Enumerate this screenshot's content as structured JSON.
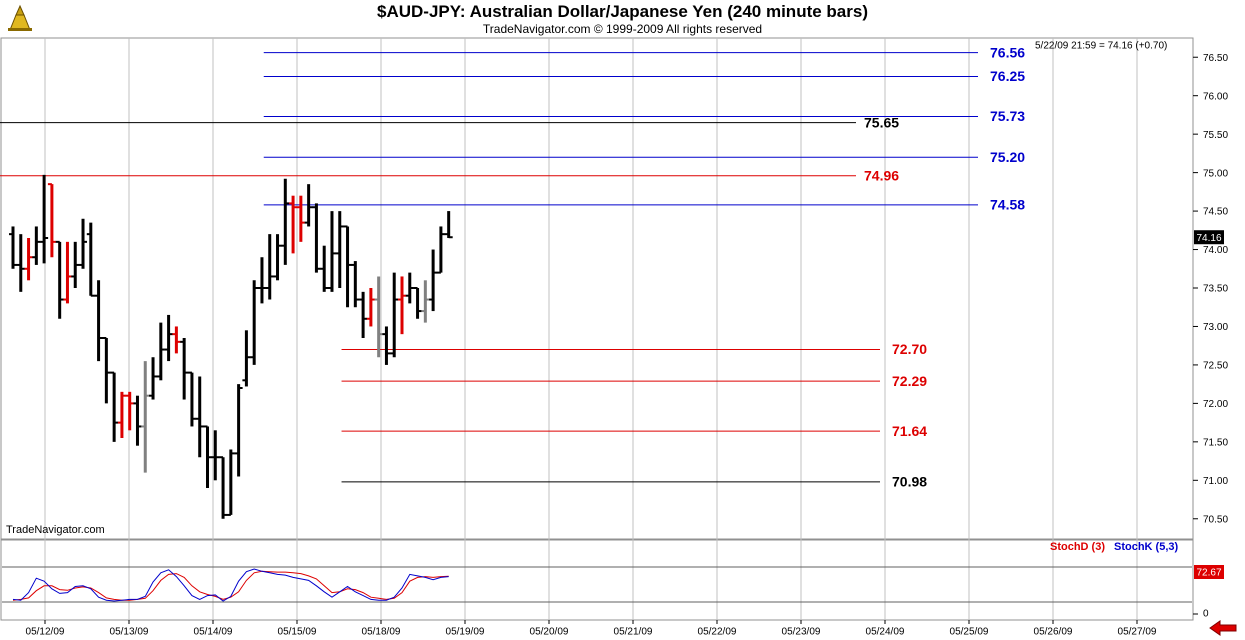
{
  "header": {
    "title": "$AUD-JPY:  Australian Dollar/Japanese Yen  (240 minute bars)",
    "subtitle": "TradeNavigator.com © 1999-2009 All rights reserved"
  },
  "footer": {
    "watermark": "TradeNavigator.com"
  },
  "colors": {
    "blue": "#0000cc",
    "red": "#dd0000",
    "black": "#000000",
    "gray": "#808080",
    "grid": "#c0c0c0",
    "last_box": "#000000"
  },
  "icons": {
    "logo": "chart-logo-icon",
    "prev": "red-left-arrow-icon"
  },
  "chart_data": [
    {
      "type": "ohlc",
      "quote_info": "5/22/09 21:59 = 74.16 (+0.70)",
      "last_price_label": "74.16",
      "last_price": 74.16,
      "ylim": [
        70.25,
        76.75
      ],
      "y_ticks": [
        70.5,
        71.0,
        71.5,
        72.0,
        72.5,
        73.0,
        73.5,
        74.0,
        74.5,
        75.0,
        75.5,
        76.0,
        76.5
      ],
      "y_tick_labels": [
        "70.50",
        "71.00",
        "71.50",
        "72.00",
        "72.50",
        "73.00",
        "73.50",
        "74.00",
        "74.50",
        "75.00",
        "75.50",
        "76.00",
        "76.50"
      ],
      "x_ticks": [
        "05/12/09",
        "05/13/09",
        "05/14/09",
        "05/15/09",
        "05/18/09",
        "05/19/09",
        "05/20/09",
        "05/21/09",
        "05/22/09",
        "05/23/09",
        "05/24/09",
        "05/25/09",
        "05/26/09",
        "05/27/09"
      ],
      "levels": [
        {
          "value": 76.56,
          "label": "76.56",
          "color": "blue",
          "start_bar": 33
        },
        {
          "value": 76.25,
          "label": "76.25",
          "color": "blue",
          "start_bar": 33
        },
        {
          "value": 75.73,
          "label": "75.73",
          "color": "blue",
          "start_bar": 33
        },
        {
          "value": 75.65,
          "label": "75.65",
          "color": "black",
          "start_bar": 0
        },
        {
          "value": 75.2,
          "label": "75.20",
          "color": "blue",
          "start_bar": 33
        },
        {
          "value": 74.96,
          "label": "74.96",
          "color": "red",
          "start_bar": 0
        },
        {
          "value": 74.58,
          "label": "74.58",
          "color": "blue",
          "start_bar": 33
        },
        {
          "value": 72.7,
          "label": "72.70",
          "color": "red",
          "start_bar": 43
        },
        {
          "value": 72.29,
          "label": "72.29",
          "color": "red",
          "start_bar": 43
        },
        {
          "value": 71.64,
          "label": "71.64",
          "color": "red",
          "start_bar": 43
        },
        {
          "value": 70.98,
          "label": "70.98",
          "color": "black",
          "start_bar": 43
        }
      ],
      "bars": [
        {
          "o": 74.2,
          "h": 74.3,
          "l": 73.75,
          "c": 73.8,
          "color": "black"
        },
        {
          "o": 73.8,
          "h": 74.2,
          "l": 73.45,
          "c": 73.75,
          "color": "black"
        },
        {
          "o": 73.75,
          "h": 74.15,
          "l": 73.6,
          "c": 73.9,
          "color": "red"
        },
        {
          "o": 73.9,
          "h": 74.3,
          "l": 73.8,
          "c": 74.1,
          "color": "black"
        },
        {
          "o": 74.1,
          "h": 74.97,
          "l": 73.82,
          "c": 74.15,
          "color": "black"
        },
        {
          "o": 74.85,
          "h": 74.85,
          "l": 73.9,
          "c": 74.1,
          "color": "red"
        },
        {
          "o": 74.1,
          "h": 74.1,
          "l": 73.1,
          "c": 73.35,
          "color": "black"
        },
        {
          "o": 73.35,
          "h": 74.1,
          "l": 73.3,
          "c": 73.65,
          "color": "red"
        },
        {
          "o": 73.65,
          "h": 74.1,
          "l": 73.5,
          "c": 73.8,
          "color": "black"
        },
        {
          "o": 73.8,
          "h": 74.4,
          "l": 73.75,
          "c": 74.1,
          "color": "black"
        },
        {
          "o": 74.2,
          "h": 74.35,
          "l": 73.4,
          "c": 73.4,
          "color": "black"
        },
        {
          "o": 73.4,
          "h": 73.6,
          "l": 72.55,
          "c": 72.85,
          "color": "black"
        },
        {
          "o": 72.85,
          "h": 72.85,
          "l": 72.0,
          "c": 72.4,
          "color": "black"
        },
        {
          "o": 72.4,
          "h": 72.4,
          "l": 71.5,
          "c": 71.75,
          "color": "black"
        },
        {
          "o": 71.75,
          "h": 72.15,
          "l": 71.55,
          "c": 72.1,
          "color": "red"
        },
        {
          "o": 72.1,
          "h": 72.15,
          "l": 71.65,
          "c": 72.0,
          "color": "red"
        },
        {
          "o": 72.0,
          "h": 72.1,
          "l": 71.45,
          "c": 71.7,
          "color": "black"
        },
        {
          "o": 71.7,
          "h": 72.55,
          "l": 71.1,
          "c": 72.1,
          "color": "gray"
        },
        {
          "o": 72.1,
          "h": 72.6,
          "l": 72.05,
          "c": 72.35,
          "color": "black"
        },
        {
          "o": 72.35,
          "h": 73.05,
          "l": 72.3,
          "c": 72.7,
          "color": "black"
        },
        {
          "o": 72.7,
          "h": 73.15,
          "l": 72.55,
          "c": 72.9,
          "color": "black"
        },
        {
          "o": 72.9,
          "h": 73.0,
          "l": 72.65,
          "c": 72.8,
          "color": "red"
        },
        {
          "o": 72.8,
          "h": 72.85,
          "l": 72.05,
          "c": 72.4,
          "color": "black"
        },
        {
          "o": 72.4,
          "h": 72.4,
          "l": 71.7,
          "c": 71.8,
          "color": "black"
        },
        {
          "o": 71.8,
          "h": 72.35,
          "l": 71.3,
          "c": 71.7,
          "color": "black"
        },
        {
          "o": 71.7,
          "h": 71.7,
          "l": 70.9,
          "c": 71.3,
          "color": "black"
        },
        {
          "o": 71.3,
          "h": 71.65,
          "l": 71.0,
          "c": 71.3,
          "color": "black"
        },
        {
          "o": 71.3,
          "h": 71.3,
          "l": 70.5,
          "c": 70.55,
          "color": "black"
        },
        {
          "o": 70.55,
          "h": 71.4,
          "l": 70.55,
          "c": 71.35,
          "color": "black"
        },
        {
          "o": 71.35,
          "h": 72.25,
          "l": 71.05,
          "c": 72.2,
          "color": "black"
        },
        {
          "o": 72.3,
          "h": 72.95,
          "l": 72.22,
          "c": 72.6,
          "color": "black"
        },
        {
          "o": 72.6,
          "h": 73.6,
          "l": 72.5,
          "c": 73.5,
          "color": "black"
        },
        {
          "o": 73.5,
          "h": 73.9,
          "l": 73.3,
          "c": 73.5,
          "color": "black"
        },
        {
          "o": 73.5,
          "h": 74.2,
          "l": 73.35,
          "c": 73.65,
          "color": "black"
        },
        {
          "o": 73.65,
          "h": 74.2,
          "l": 73.6,
          "c": 74.05,
          "color": "black"
        },
        {
          "o": 74.05,
          "h": 74.92,
          "l": 73.8,
          "c": 74.6,
          "color": "black"
        },
        {
          "o": 74.6,
          "h": 74.7,
          "l": 73.95,
          "c": 74.55,
          "color": "red"
        },
        {
          "o": 74.55,
          "h": 74.7,
          "l": 74.1,
          "c": 74.35,
          "color": "red"
        },
        {
          "o": 74.35,
          "h": 74.85,
          "l": 74.3,
          "c": 74.55,
          "color": "black"
        },
        {
          "o": 74.55,
          "h": 74.6,
          "l": 73.7,
          "c": 73.75,
          "color": "black"
        },
        {
          "o": 73.75,
          "h": 74.05,
          "l": 73.45,
          "c": 73.5,
          "color": "black"
        },
        {
          "o": 73.5,
          "h": 74.5,
          "l": 73.45,
          "c": 73.95,
          "color": "black"
        },
        {
          "o": 73.95,
          "h": 74.5,
          "l": 73.5,
          "c": 74.3,
          "color": "black"
        },
        {
          "o": 74.3,
          "h": 74.3,
          "l": 73.25,
          "c": 73.8,
          "color": "black"
        },
        {
          "o": 73.8,
          "h": 73.85,
          "l": 73.25,
          "c": 73.35,
          "color": "black"
        },
        {
          "o": 73.35,
          "h": 73.45,
          "l": 72.85,
          "c": 73.1,
          "color": "black"
        },
        {
          "o": 73.1,
          "h": 73.5,
          "l": 73.0,
          "c": 73.35,
          "color": "red"
        },
        {
          "o": 73.35,
          "h": 73.65,
          "l": 72.6,
          "c": 72.9,
          "color": "gray"
        },
        {
          "o": 72.9,
          "h": 73.0,
          "l": 72.5,
          "c": 72.65,
          "color": "black"
        },
        {
          "o": 72.65,
          "h": 73.7,
          "l": 72.6,
          "c": 73.35,
          "color": "black"
        },
        {
          "o": 73.35,
          "h": 73.65,
          "l": 72.9,
          "c": 73.4,
          "color": "red"
        },
        {
          "o": 73.4,
          "h": 73.7,
          "l": 73.3,
          "c": 73.5,
          "color": "black"
        },
        {
          "o": 73.5,
          "h": 73.5,
          "l": 73.1,
          "c": 73.2,
          "color": "black"
        },
        {
          "o": 73.2,
          "h": 73.6,
          "l": 73.05,
          "c": 73.35,
          "color": "gray"
        },
        {
          "o": 73.35,
          "h": 74.0,
          "l": 73.2,
          "c": 73.7,
          "color": "black"
        },
        {
          "o": 73.7,
          "h": 74.3,
          "l": 73.7,
          "c": 74.2,
          "color": "black"
        },
        {
          "o": 74.2,
          "h": 74.5,
          "l": 74.15,
          "c": 74.16,
          "color": "black"
        }
      ]
    },
    {
      "type": "line",
      "title": "StochD (3)  StochK (5,3)",
      "ylim": [
        0,
        100
      ],
      "y_ticks": [
        0
      ],
      "y_tick_labels": [
        "0"
      ],
      "last_value_label": "72.67",
      "series": [
        {
          "name": "StochD (3)",
          "color": "red",
          "values": [
            10,
            12,
            16,
            35,
            48,
            48,
            38,
            36,
            42,
            45,
            42,
            30,
            16,
            12,
            10,
            10,
            12,
            15,
            35,
            62,
            78,
            80,
            70,
            48,
            32,
            25,
            20,
            12,
            18,
            32,
            62,
            82,
            86,
            85,
            84,
            84,
            82,
            80,
            74,
            66,
            48,
            30,
            32,
            40,
            38,
            30,
            18,
            15,
            12,
            15,
            30,
            60,
            70,
            72,
            70,
            72,
            73
          ]
        },
        {
          "name": "StochK (5,3)",
          "color": "blue",
          "values": [
            12,
            10,
            30,
            68,
            60,
            40,
            28,
            30,
            46,
            48,
            40,
            18,
            10,
            8,
            10,
            12,
            12,
            20,
            58,
            82,
            90,
            72,
            48,
            22,
            12,
            22,
            24,
            8,
            20,
            60,
            85,
            92,
            86,
            82,
            78,
            76,
            70,
            66,
            62,
            48,
            32,
            18,
            32,
            46,
            32,
            22,
            12,
            10,
            10,
            18,
            42,
            78,
            74,
            70,
            64,
            70,
            72
          ]
        }
      ]
    }
  ]
}
